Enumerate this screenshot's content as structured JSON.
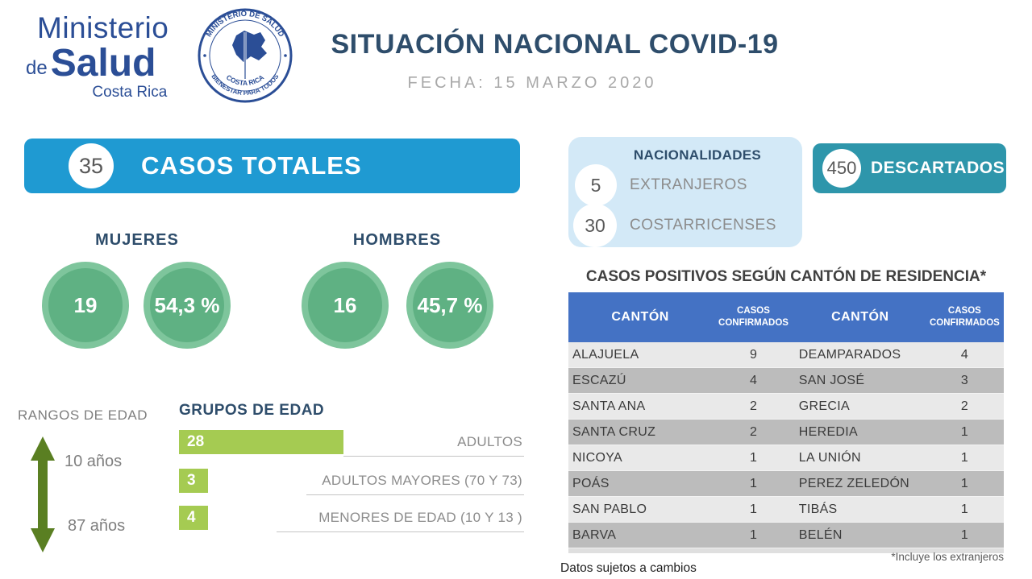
{
  "colors": {
    "accent_blue": "#1F9AD2",
    "teal": "#2E96AB",
    "light_blue_panel": "#D3E9F7",
    "navy_text": "#2E4D6B",
    "logo_blue": "#2B4E96",
    "green_circle": "#5FB183",
    "green_ring": "#7EC59C",
    "lime_bar": "#A5CB52",
    "olive_arrow": "#5A7F22",
    "table_header_blue": "#4472C4",
    "row_light": "#E9E9E9",
    "row_dark": "#BCBCBC"
  },
  "header": {
    "logo": {
      "line1": "Ministerio",
      "line2_small": "de",
      "line2_big": "Salud",
      "line3": "Costa Rica",
      "seal_top": "MINISTERIO DE SALUD",
      "seal_middle": "COSTA RICA",
      "seal_bottom": "BIENESTAR PARA TODOS"
    },
    "title": "SITUACIÓN NACIONAL COVID-19",
    "date_label": "FECHA: 15 MARZO 2020"
  },
  "totals": {
    "value": "35",
    "label": "CASOS TOTALES"
  },
  "nationalities": {
    "title": "NACIONALIDADES",
    "items": [
      {
        "value": "5",
        "label": "EXTRANJEROS"
      },
      {
        "value": "30",
        "label": "COSTARRICENSES"
      }
    ]
  },
  "discarded": {
    "value": "450",
    "label": "DESCARTADOS"
  },
  "gender": {
    "women": {
      "label": "MUJERES",
      "count": "19",
      "percent": "54,3 %"
    },
    "men": {
      "label": "HOMBRES",
      "count": "16",
      "percent": "45,7 %"
    }
  },
  "age_range": {
    "title": "RANGOS DE EDAD",
    "min": "10 años",
    "max": "87 años"
  },
  "age_groups": {
    "title": "GRUPOS DE EDAD",
    "bars": [
      {
        "value": "28",
        "label": "ADULTOS"
      },
      {
        "value": "3",
        "label": "ADULTOS MAYORES (70 Y 73)"
      },
      {
        "value": "4",
        "label": "MENORES DE EDAD (10 Y 13 )"
      }
    ]
  },
  "canton_table": {
    "title": "CASOS POSITIVOS SEGÚN CANTÓN DE RESIDENCIA*",
    "headers": [
      "CANTÓN",
      "CASOS CONFIRMADOS",
      "CANTÓN",
      "CASOS CONFIRMADOS"
    ],
    "rows": [
      [
        "ALAJUELA",
        "9",
        "DEAMPARADOS",
        "4"
      ],
      [
        "ESCAZÚ",
        "4",
        "SAN JOSÉ",
        "3"
      ],
      [
        "SANTA ANA",
        "2",
        "GRECIA",
        "2"
      ],
      [
        "SANTA CRUZ",
        "2",
        "HEREDIA",
        "1"
      ],
      [
        "NICOYA",
        "1",
        "LA UNIÓN",
        "1"
      ],
      [
        "POÁS",
        "1",
        "PEREZ ZELEDÓN",
        "1"
      ],
      [
        "SAN PABLO",
        "1",
        "TIBÁS",
        "1"
      ],
      [
        "BARVA",
        "1",
        "BELÉN",
        "1"
      ]
    ],
    "footnote": "*Incluye los extranjeros"
  },
  "footer_note": "Datos sujetos a cambios",
  "chart_data": [
    {
      "type": "bar",
      "title": "GRUPOS DE EDAD",
      "orientation": "horizontal",
      "categories": [
        "ADULTOS",
        "ADULTOS MAYORES (70 Y 73)",
        "MENORES DE EDAD (10 Y 13 )"
      ],
      "values": [
        28,
        3,
        4
      ],
      "xlabel": "",
      "ylabel": "",
      "xlim": [
        0,
        28
      ],
      "grid": false,
      "legend": false
    },
    {
      "type": "table",
      "title": "CASOS POSITIVOS SEGÚN CANTÓN DE RESIDENCIA*",
      "columns": [
        "CANTÓN",
        "CASOS CONFIRMADOS"
      ],
      "rows": [
        [
          "ALAJUELA",
          9
        ],
        [
          "DEAMPARADOS",
          4
        ],
        [
          "ESCAZÚ",
          4
        ],
        [
          "SAN JOSÉ",
          3
        ],
        [
          "SANTA ANA",
          2
        ],
        [
          "GRECIA",
          2
        ],
        [
          "SANTA CRUZ",
          2
        ],
        [
          "HEREDIA",
          1
        ],
        [
          "NICOYA",
          1
        ],
        [
          "LA UNIÓN",
          1
        ],
        [
          "POÁS",
          1
        ],
        [
          "PEREZ ZELEDÓN",
          1
        ],
        [
          "SAN PABLO",
          1
        ],
        [
          "TIBÁS",
          1
        ],
        [
          "BARVA",
          1
        ],
        [
          "BELÉN",
          1
        ]
      ]
    },
    {
      "type": "pie",
      "title": "Casos por sexo",
      "categories": [
        "MUJERES",
        "HOMBRES"
      ],
      "values": [
        19,
        16
      ],
      "percent_labels": [
        "54,3 %",
        "45,7 %"
      ]
    },
    {
      "type": "pie",
      "title": "NACIONALIDADES",
      "categories": [
        "EXTRANJEROS",
        "COSTARRICENSES"
      ],
      "values": [
        5,
        30
      ]
    }
  ]
}
